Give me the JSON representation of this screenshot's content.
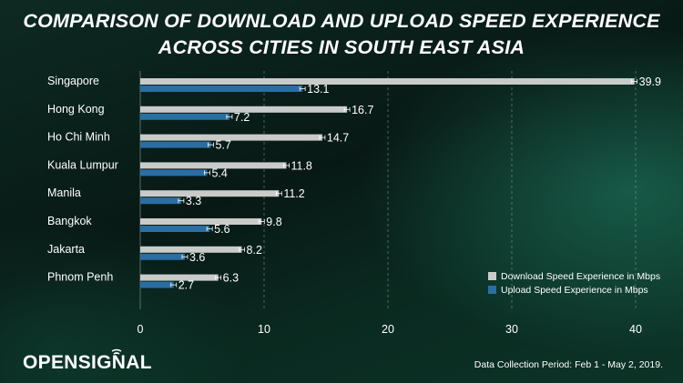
{
  "title_line1": "COMPARISON OF DOWNLOAD AND UPLOAD SPEED EXPERIENCE",
  "title_line2": "ACROSS CITIES IN SOUTH EAST ASIA",
  "logo_text": "OPENSIGNAL",
  "footnote": "Data Collection Period:  Feb 1 - May 2, 2019.",
  "colors": {
    "download": "#c9cbc9",
    "upload": "#2a6ea3",
    "grid": "#9aa8a2"
  },
  "chart_data": {
    "type": "bar",
    "orientation": "horizontal",
    "categories": [
      "Singapore",
      "Hong Kong",
      "Ho Chi Minh",
      "Kuala Lumpur",
      "Manila",
      "Bangkok",
      "Jakarta",
      "Phnom Penh"
    ],
    "series": [
      {
        "name": "Download Speed Experience in Mbps",
        "values": [
          39.9,
          16.7,
          14.7,
          11.8,
          11.2,
          9.8,
          8.2,
          6.3
        ]
      },
      {
        "name": "Upload Speed Experience in Mbps",
        "values": [
          13.1,
          7.2,
          5.7,
          5.4,
          3.3,
          5.6,
          3.6,
          2.7
        ]
      }
    ],
    "data_labels": [
      [
        "39.9",
        "16.7",
        "14.7",
        "11.8",
        "11.2",
        "9.8",
        "8.2",
        "6.3"
      ],
      [
        "13.1",
        "7.2",
        "5.7",
        "5.4",
        "3.3",
        "5.6",
        "3.6",
        "2.7"
      ]
    ],
    "xticks": [
      "0",
      "10",
      "20",
      "30",
      "40"
    ],
    "xlim": [
      0,
      40
    ],
    "grid": "vertical dashed",
    "error_bars": true,
    "legend_position": "bottom-right"
  }
}
